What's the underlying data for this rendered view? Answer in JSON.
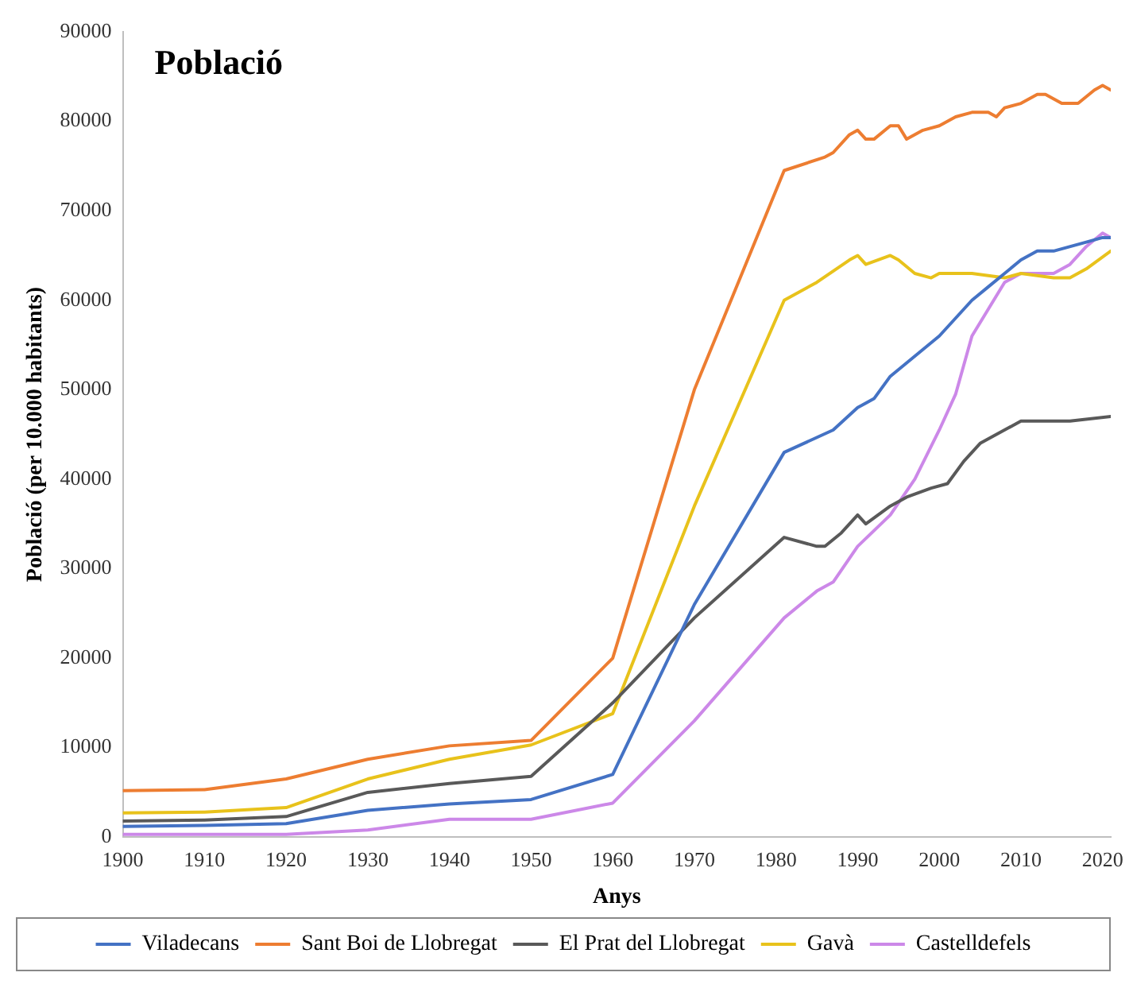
{
  "chart_data": {
    "type": "line",
    "title": "Població",
    "xlabel": "Anys",
    "ylabel": "Població (per 10.000 habitants)",
    "xlim": [
      1900,
      2021
    ],
    "xticks": [
      1900,
      1910,
      1920,
      1930,
      1940,
      1950,
      1960,
      1970,
      1980,
      1990,
      2000,
      2010,
      2020
    ],
    "ylim": [
      0,
      90000
    ],
    "yticks": [
      0,
      10000,
      20000,
      30000,
      40000,
      50000,
      60000,
      70000,
      80000,
      90000
    ],
    "grid": false,
    "legend": "bottom",
    "marker": "none",
    "line_style": "solid",
    "series": [
      {
        "name": "Viladecans",
        "color": "#4472c4",
        "x": [
          1900,
          1910,
          1920,
          1930,
          1940,
          1950,
          1960,
          1970,
          1981,
          1987,
          1990,
          1992,
          1994,
          2000,
          2004,
          2006,
          2008,
          2010,
          2012,
          2014,
          2018,
          2020,
          2021
        ],
        "values": [
          1200,
          1300,
          1500,
          3000,
          3700,
          4200,
          7000,
          26000,
          43000,
          45500,
          48000,
          49000,
          51500,
          56000,
          60000,
          61500,
          63000,
          64500,
          65500,
          65500,
          66500,
          67000,
          67000
        ]
      },
      {
        "name": "Sant Boi de Llobregat",
        "color": "#ed7d31",
        "x": [
          1900,
          1910,
          1920,
          1930,
          1940,
          1950,
          1960,
          1970,
          1981,
          1986,
          1987,
          1989,
          1990,
          1991,
          1992,
          1994,
          1995,
          1996,
          1998,
          2000,
          2002,
          2004,
          2006,
          2007,
          2008,
          2010,
          2012,
          2013,
          2015,
          2017,
          2019,
          2020,
          2021
        ],
        "values": [
          5200,
          5300,
          6500,
          8700,
          10200,
          10800,
          20000,
          50000,
          74500,
          76000,
          76500,
          78500,
          79000,
          78000,
          78000,
          79500,
          79500,
          78000,
          79000,
          79500,
          80500,
          81000,
          81000,
          80500,
          81500,
          82000,
          83000,
          83000,
          82000,
          82000,
          83500,
          84000,
          83500
        ]
      },
      {
        "name": "El Prat del Llobregat",
        "color": "#595959",
        "x": [
          1900,
          1910,
          1920,
          1930,
          1940,
          1950,
          1960,
          1970,
          1981,
          1985,
          1986,
          1988,
          1990,
          1991,
          1994,
          1996,
          1999,
          2001,
          2003,
          2005,
          2007,
          2010,
          2012,
          2016,
          2021
        ],
        "values": [
          1800,
          1900,
          2300,
          5000,
          6000,
          6800,
          15000,
          24500,
          33500,
          32500,
          32500,
          34000,
          36000,
          35000,
          37000,
          38000,
          39000,
          39500,
          42000,
          44000,
          45000,
          46500,
          46500,
          46500,
          47000
        ]
      },
      {
        "name": "Gavà",
        "color": "#e8c21b",
        "x": [
          1900,
          1910,
          1920,
          1930,
          1940,
          1950,
          1960,
          1970,
          1981,
          1985,
          1989,
          1990,
          1991,
          1994,
          1995,
          1997,
          1999,
          2000,
          2004,
          2008,
          2010,
          2014,
          2016,
          2018,
          2021
        ],
        "values": [
          2700,
          2800,
          3300,
          6500,
          8700,
          10300,
          13800,
          37000,
          60000,
          62000,
          64500,
          65000,
          64000,
          65000,
          64500,
          63000,
          62500,
          63000,
          63000,
          62500,
          63000,
          62500,
          62500,
          63500,
          65500
        ]
      },
      {
        "name": "Castelldefels",
        "color": "#cc88e8",
        "x": [
          1900,
          1910,
          1920,
          1930,
          1940,
          1950,
          1960,
          1970,
          1981,
          1985,
          1987,
          1990,
          1994,
          1997,
          2000,
          2002,
          2004,
          2006,
          2008,
          2010,
          2012,
          2014,
          2016,
          2018,
          2020,
          2021
        ],
        "values": [
          300,
          300,
          300,
          800,
          2000,
          2000,
          3800,
          13000,
          24500,
          27500,
          28500,
          32500,
          36000,
          40000,
          45500,
          49500,
          56000,
          59000,
          62000,
          63000,
          63000,
          63000,
          64000,
          66000,
          67500,
          67000
        ]
      }
    ]
  }
}
